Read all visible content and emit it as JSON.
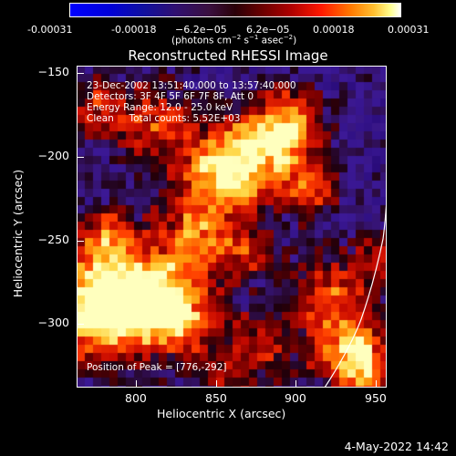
{
  "colorbar": {
    "ticks": [
      "-0.00031",
      "-0.00018",
      "−6.2e−05",
      "6.2e−05",
      "0.00018",
      "0.00031"
    ],
    "units_prefix": "(photons cm",
    "units_sup1": "−2",
    "units_mid1": " s",
    "units_sup2": "−1",
    "units_mid2": " asec",
    "units_sup3": "−2",
    "units_suffix": ")"
  },
  "plot": {
    "title": "Reconstructed RHESSI Image",
    "annotations": [
      "23-Dec-2002 13:51:40.000 to 13:57:40.000",
      "Detectors: 3F 4F 5F 6F 7F 8F, Att 0",
      "Energy Range: 12.0 - 25.0 keV",
      "Clean     Total counts: 5.52E+03"
    ],
    "peak_label": "Position of Peak = [776,-292]",
    "xlabel": "Heliocentric X (arcsec)",
    "ylabel": "Heliocentric Y (arcsec)",
    "xticks": [
      "800",
      "850",
      "900",
      "950"
    ],
    "yticks": [
      "−150",
      "−200",
      "−250",
      "−300"
    ]
  },
  "footer": {
    "timestamp": "4-May-2022 14:42"
  },
  "colors": {
    "background": "#000000",
    "foreground": "#ffffff"
  }
}
